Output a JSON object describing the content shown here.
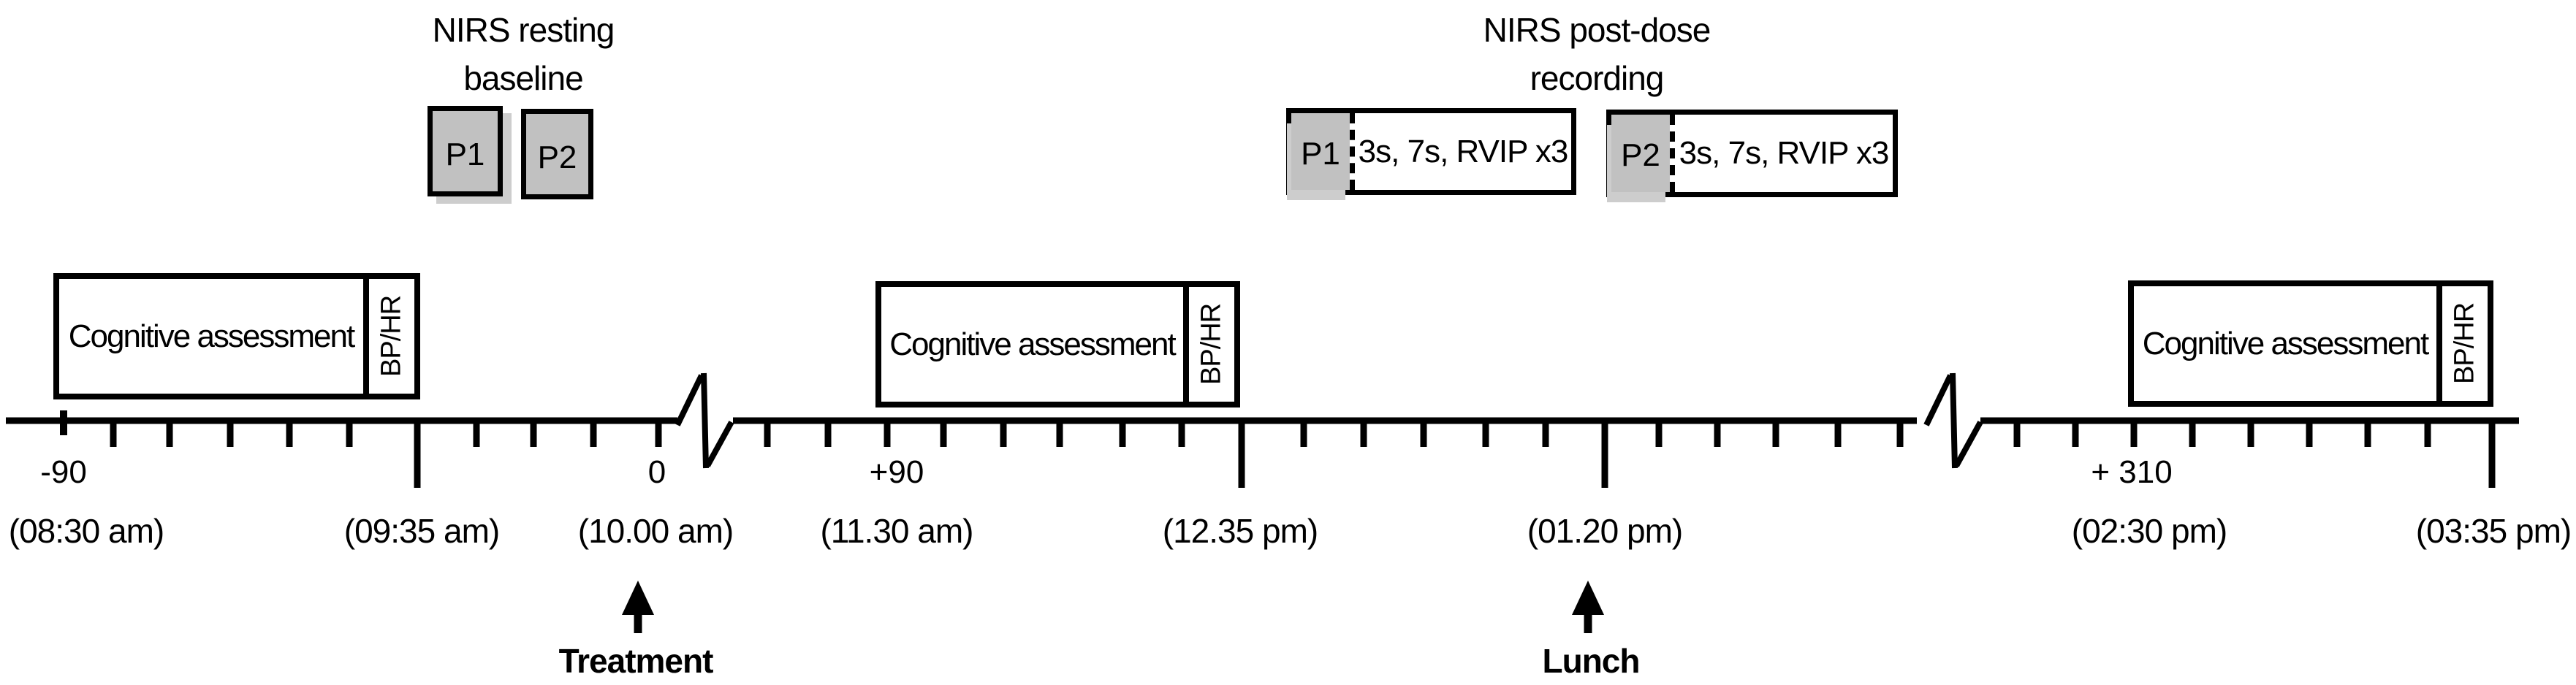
{
  "nirs_baseline": {
    "title_line1": "NIRS resting",
    "title_line2": "baseline",
    "probes": [
      {
        "label": "P1"
      },
      {
        "label": "P2"
      }
    ]
  },
  "nirs_postdose": {
    "title_line1": "NIRS post-dose",
    "title_line2": "recording",
    "recordings": [
      {
        "probe": "P1",
        "tasks": "3s, 7s, RVIP x3"
      },
      {
        "probe": "P2",
        "tasks": "3s, 7s, RVIP x3"
      }
    ]
  },
  "cognitive_blocks": [
    {
      "label": "Cognitive assessment",
      "measure": "BP/HR"
    },
    {
      "label": "Cognitive assessment",
      "measure": "BP/HR"
    },
    {
      "label": "Cognitive assessment",
      "measure": "BP/HR"
    }
  ],
  "timeline": {
    "relative_times": [
      {
        "label": "-90"
      },
      {
        "label": "0"
      },
      {
        "label": "+90"
      },
      {
        "label": "+ 310"
      }
    ],
    "clock_times": [
      {
        "label": "(08:30 am)"
      },
      {
        "label": "(09:35 am)"
      },
      {
        "label": "(10.00 am)"
      },
      {
        "label": "(11.30 am)"
      },
      {
        "label": "(12.35 pm)"
      },
      {
        "label": "(01.20 pm)"
      },
      {
        "label": "(02:30 pm)"
      },
      {
        "label": "(03:35 pm)"
      }
    ]
  },
  "events": [
    {
      "label": "Treatment"
    },
    {
      "label": "Lunch"
    }
  ],
  "colors": {
    "ink": "#000000",
    "probe_fill": "#c1c1c1",
    "background": "#ffffff"
  }
}
